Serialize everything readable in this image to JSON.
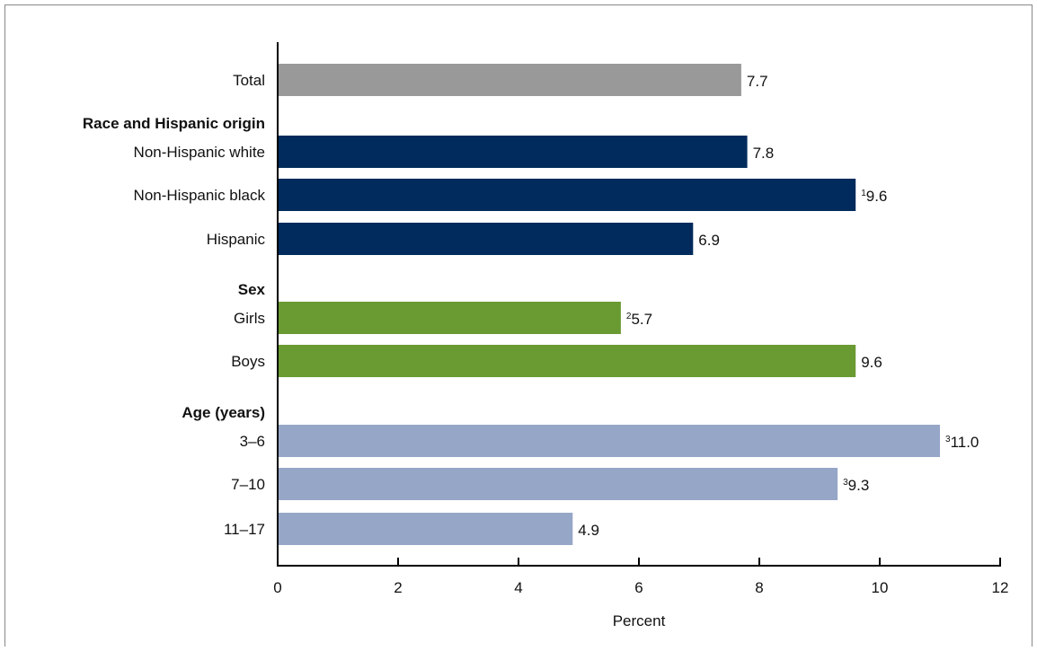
{
  "chart_data": {
    "type": "bar",
    "orientation": "horizontal",
    "xlabel": "Percent",
    "xlim": [
      0,
      12
    ],
    "xticks": [
      0,
      2,
      4,
      6,
      8,
      10,
      12
    ],
    "grid": false,
    "colors": {
      "total": "#999999",
      "race": "#002b5c",
      "sex": "#6a9a32",
      "age": "#96a6c7"
    },
    "groups": [
      {
        "heading": "",
        "color_key": "total",
        "bars": [
          {
            "label": "Total",
            "value": 7.7,
            "value_label": "7.7",
            "footnote": ""
          }
        ]
      },
      {
        "heading": "Race and Hispanic origin",
        "color_key": "race",
        "bars": [
          {
            "label": "Non-Hispanic white",
            "value": 7.8,
            "value_label": "7.8",
            "footnote": ""
          },
          {
            "label": "Non-Hispanic black",
            "value": 9.6,
            "value_label": "9.6",
            "footnote": "1"
          },
          {
            "label": "Hispanic",
            "value": 6.9,
            "value_label": "6.9",
            "footnote": ""
          }
        ]
      },
      {
        "heading": "Sex",
        "color_key": "sex",
        "bars": [
          {
            "label": "Girls",
            "value": 5.7,
            "value_label": "5.7",
            "footnote": "2"
          },
          {
            "label": "Boys",
            "value": 9.6,
            "value_label": "9.6",
            "footnote": ""
          }
        ]
      },
      {
        "heading": "Age (years)",
        "color_key": "age",
        "bars": [
          {
            "label": "3–6",
            "value": 11.0,
            "value_label": "11.0",
            "footnote": "3"
          },
          {
            "label": "7–10",
            "value": 9.3,
            "value_label": "9.3",
            "footnote": "3"
          },
          {
            "label": "11–17",
            "value": 4.9,
            "value_label": "4.9",
            "footnote": ""
          }
        ]
      }
    ]
  }
}
